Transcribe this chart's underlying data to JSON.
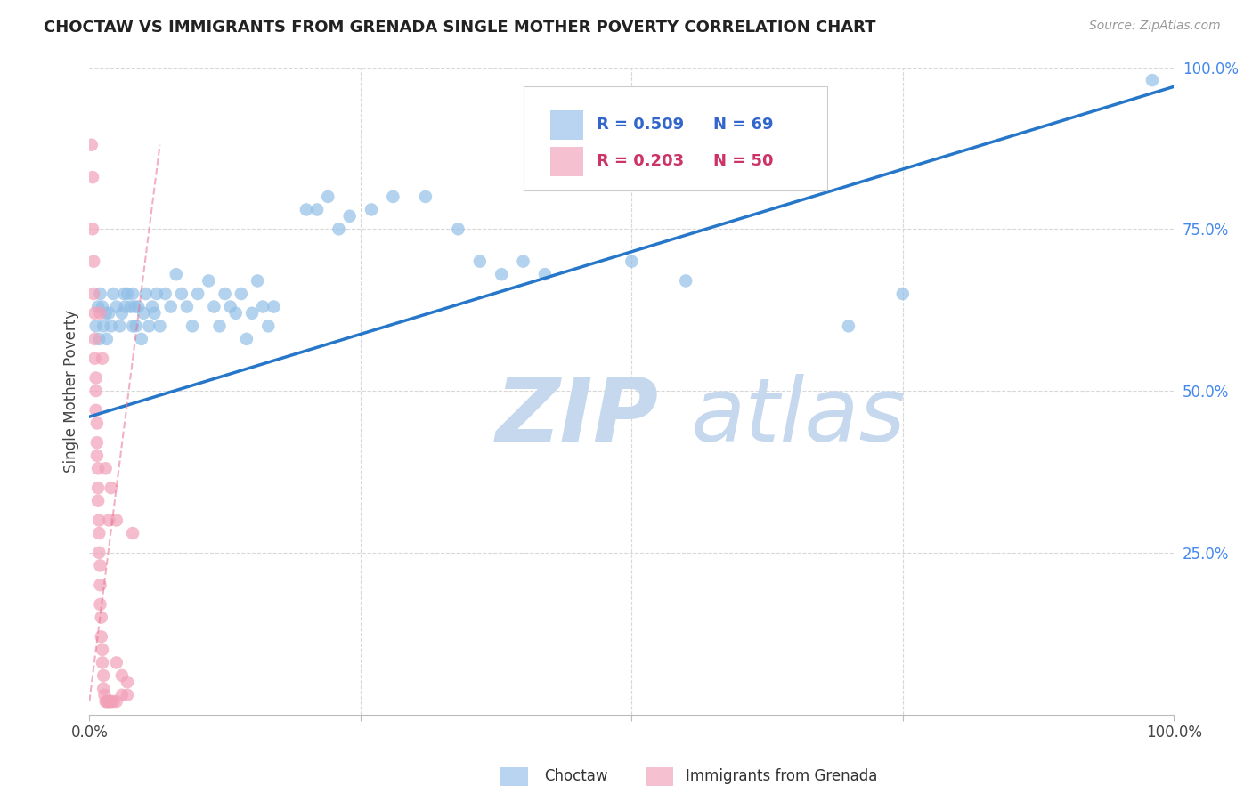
{
  "title": "CHOCTAW VS IMMIGRANTS FROM GRENADA SINGLE MOTHER POVERTY CORRELATION CHART",
  "source": "Source: ZipAtlas.com",
  "ylabel": "Single Mother Poverty",
  "xlim": [
    0,
    1
  ],
  "ylim": [
    0,
    1
  ],
  "choctaw_color": "#92bfe8",
  "grenada_color": "#f2a0b8",
  "trend_blue_color": "#2677c9",
  "trend_pink_color": "#e87090",
  "watermark_zip_color": "#c5d8ee",
  "watermark_atlas_color": "#c5d8ee",
  "grid_color": "#d8d8d8",
  "background_color": "#ffffff",
  "legend_blue_fill": "#b8d4f0",
  "legend_pink_fill": "#f5c0d0",
  "r_blue_color": "#3366cc",
  "r_pink_color": "#cc3366",
  "n_blue_color": "#3366cc",
  "n_pink_color": "#cc3366",
  "choctaw_points": [
    [
      0.006,
      0.6
    ],
    [
      0.008,
      0.63
    ],
    [
      0.009,
      0.58
    ],
    [
      0.01,
      0.65
    ],
    [
      0.012,
      0.63
    ],
    [
      0.013,
      0.6
    ],
    [
      0.015,
      0.62
    ],
    [
      0.016,
      0.58
    ],
    [
      0.018,
      0.62
    ],
    [
      0.02,
      0.6
    ],
    [
      0.022,
      0.65
    ],
    [
      0.025,
      0.63
    ],
    [
      0.028,
      0.6
    ],
    [
      0.03,
      0.62
    ],
    [
      0.032,
      0.65
    ],
    [
      0.033,
      0.63
    ],
    [
      0.035,
      0.65
    ],
    [
      0.038,
      0.63
    ],
    [
      0.04,
      0.6
    ],
    [
      0.04,
      0.65
    ],
    [
      0.042,
      0.63
    ],
    [
      0.043,
      0.6
    ],
    [
      0.045,
      0.63
    ],
    [
      0.048,
      0.58
    ],
    [
      0.05,
      0.62
    ],
    [
      0.052,
      0.65
    ],
    [
      0.055,
      0.6
    ],
    [
      0.058,
      0.63
    ],
    [
      0.06,
      0.62
    ],
    [
      0.062,
      0.65
    ],
    [
      0.065,
      0.6
    ],
    [
      0.07,
      0.65
    ],
    [
      0.075,
      0.63
    ],
    [
      0.08,
      0.68
    ],
    [
      0.085,
      0.65
    ],
    [
      0.09,
      0.63
    ],
    [
      0.095,
      0.6
    ],
    [
      0.1,
      0.65
    ],
    [
      0.11,
      0.67
    ],
    [
      0.115,
      0.63
    ],
    [
      0.12,
      0.6
    ],
    [
      0.125,
      0.65
    ],
    [
      0.13,
      0.63
    ],
    [
      0.135,
      0.62
    ],
    [
      0.14,
      0.65
    ],
    [
      0.145,
      0.58
    ],
    [
      0.15,
      0.62
    ],
    [
      0.155,
      0.67
    ],
    [
      0.16,
      0.63
    ],
    [
      0.165,
      0.6
    ],
    [
      0.17,
      0.63
    ],
    [
      0.2,
      0.78
    ],
    [
      0.21,
      0.78
    ],
    [
      0.22,
      0.8
    ],
    [
      0.23,
      0.75
    ],
    [
      0.24,
      0.77
    ],
    [
      0.26,
      0.78
    ],
    [
      0.28,
      0.8
    ],
    [
      0.31,
      0.8
    ],
    [
      0.34,
      0.75
    ],
    [
      0.36,
      0.7
    ],
    [
      0.38,
      0.68
    ],
    [
      0.4,
      0.7
    ],
    [
      0.42,
      0.68
    ],
    [
      0.5,
      0.7
    ],
    [
      0.55,
      0.67
    ],
    [
      0.7,
      0.6
    ],
    [
      0.75,
      0.65
    ],
    [
      0.98,
      0.98
    ]
  ],
  "grenada_points": [
    [
      0.002,
      0.88
    ],
    [
      0.003,
      0.83
    ],
    [
      0.003,
      0.75
    ],
    [
      0.004,
      0.7
    ],
    [
      0.004,
      0.65
    ],
    [
      0.005,
      0.62
    ],
    [
      0.005,
      0.58
    ],
    [
      0.005,
      0.55
    ],
    [
      0.006,
      0.52
    ],
    [
      0.006,
      0.5
    ],
    [
      0.006,
      0.47
    ],
    [
      0.007,
      0.45
    ],
    [
      0.007,
      0.42
    ],
    [
      0.007,
      0.4
    ],
    [
      0.008,
      0.38
    ],
    [
      0.008,
      0.35
    ],
    [
      0.008,
      0.33
    ],
    [
      0.009,
      0.3
    ],
    [
      0.009,
      0.28
    ],
    [
      0.009,
      0.25
    ],
    [
      0.01,
      0.23
    ],
    [
      0.01,
      0.2
    ],
    [
      0.01,
      0.17
    ],
    [
      0.011,
      0.15
    ],
    [
      0.011,
      0.12
    ],
    [
      0.012,
      0.1
    ],
    [
      0.012,
      0.08
    ],
    [
      0.013,
      0.06
    ],
    [
      0.013,
      0.04
    ],
    [
      0.014,
      0.03
    ],
    [
      0.015,
      0.02
    ],
    [
      0.016,
      0.02
    ],
    [
      0.017,
      0.02
    ],
    [
      0.018,
      0.02
    ],
    [
      0.019,
      0.02
    ],
    [
      0.02,
      0.02
    ],
    [
      0.022,
      0.02
    ],
    [
      0.025,
      0.02
    ],
    [
      0.03,
      0.03
    ],
    [
      0.035,
      0.03
    ],
    [
      0.04,
      0.28
    ],
    [
      0.02,
      0.35
    ],
    [
      0.025,
      0.3
    ],
    [
      0.025,
      0.08
    ],
    [
      0.03,
      0.06
    ],
    [
      0.035,
      0.05
    ],
    [
      0.018,
      0.3
    ],
    [
      0.015,
      0.38
    ],
    [
      0.012,
      0.55
    ],
    [
      0.01,
      0.62
    ]
  ],
  "blue_trend_x": [
    0.0,
    1.0
  ],
  "blue_trend_y": [
    0.46,
    0.97
  ],
  "pink_trend_x": [
    0.0,
    0.065
  ],
  "pink_trend_y": [
    0.02,
    0.88
  ]
}
